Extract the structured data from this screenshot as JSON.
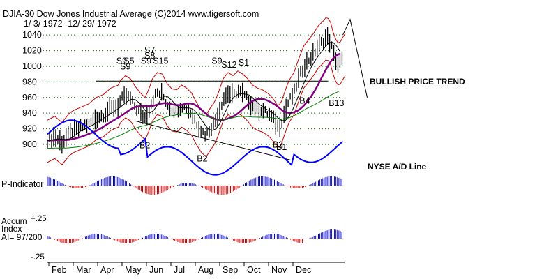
{
  "header": {
    "title": "DJIA-30  Dow Jones Industrial Average   (C)2014 www.tigersoft.com",
    "date_range": "1/ 3/ 1972- 12/ 29/ 1972"
  },
  "panels": {
    "p_indicator_label": "P-Indicator",
    "accum_label": "Accum",
    "index_label": "Index",
    "ai_label": "AI= 97/200",
    "accum_plus_tick": "+.25",
    "accum_minus_tick": "-.25"
  },
  "annotations": {
    "bullish_trend": "BULLISH PRICE TREND",
    "nyse_ad": "NYSE A/D Line"
  },
  "signals": [
    {
      "label": "S9",
      "month_pos": 4.05,
      "level": 1003
    },
    {
      "label": "S5",
      "month_pos": 4.35,
      "level": 1003
    },
    {
      "label": "S9",
      "month_pos": 4.2,
      "level": 996
    },
    {
      "label": "S7",
      "month_pos": 5.2,
      "level": 1017
    },
    {
      "label": "S8",
      "month_pos": 5.2,
      "level": 1010
    },
    {
      "label": "S9",
      "month_pos": 5.05,
      "level": 1003
    },
    {
      "label": "S15",
      "month_pos": 5.55,
      "level": 1003
    },
    {
      "label": "S9",
      "month_pos": 7.95,
      "level": 1003
    },
    {
      "label": "S12",
      "month_pos": 8.35,
      "level": 998
    },
    {
      "label": "S1",
      "month_pos": 9.05,
      "level": 1001
    },
    {
      "label": "B2",
      "month_pos": 5.0,
      "level": 895
    },
    {
      "label": "B2",
      "month_pos": 7.35,
      "level": 878
    },
    {
      "label": "B2",
      "month_pos": 10.45,
      "level": 896
    },
    {
      "label": "B1",
      "month_pos": 10.6,
      "level": 893
    },
    {
      "label": "B4",
      "month_pos": 11.55,
      "level": 952
    },
    {
      "label": "B13",
      "month_pos": 12.75,
      "level": 949
    }
  ],
  "colors": {
    "price_bars": "#000000",
    "band": "#cc0000",
    "ma_long": "#800080",
    "ma_green": "#008000",
    "ad_line": "#0000ff",
    "positive": "#0000cc",
    "negative": "#cc0000",
    "grid": "#008000"
  },
  "chart_data": {
    "type": "line",
    "title": "DJIA-30  Dow Jones Industrial Average",
    "x_ticks": [
      "Feb",
      "Mar",
      "Apr",
      "May",
      "Jun",
      "Jul",
      "Aug",
      "Sep",
      "Oct",
      "Nov",
      "Dec"
    ],
    "y_ticks": [
      900,
      920,
      940,
      960,
      980,
      1000,
      1020,
      1040
    ],
    "ylim": [
      875,
      1058
    ],
    "grid": true,
    "series": [
      {
        "name": "DJIA",
        "points": [
          [
            1.0,
            905
          ],
          [
            1.3,
            910
          ],
          [
            1.6,
            902
          ],
          [
            1.9,
            914
          ],
          [
            2.1,
            918
          ],
          [
            2.4,
            922
          ],
          [
            2.7,
            926
          ],
          [
            3.0,
            934
          ],
          [
            3.3,
            938
          ],
          [
            3.6,
            946
          ],
          [
            3.9,
            950
          ],
          [
            4.0,
            956
          ],
          [
            4.2,
            962
          ],
          [
            4.4,
            958
          ],
          [
            4.6,
            948
          ],
          [
            4.8,
            940
          ],
          [
            5.0,
            934
          ],
          [
            5.15,
            944
          ],
          [
            5.3,
            958
          ],
          [
            5.5,
            966
          ],
          [
            5.7,
            964
          ],
          [
            5.9,
            952
          ],
          [
            6.1,
            945
          ],
          [
            6.3,
            944
          ],
          [
            6.5,
            950
          ],
          [
            6.7,
            946
          ],
          [
            6.9,
            940
          ],
          [
            7.1,
            928
          ],
          [
            7.3,
            918
          ],
          [
            7.5,
            912
          ],
          [
            7.7,
            922
          ],
          [
            7.85,
            928
          ],
          [
            8.0,
            940
          ],
          [
            8.2,
            958
          ],
          [
            8.4,
            966
          ],
          [
            8.6,
            962
          ],
          [
            8.8,
            968
          ],
          [
            9.0,
            964
          ],
          [
            9.2,
            958
          ],
          [
            9.4,
            950
          ],
          [
            9.6,
            946
          ],
          [
            9.8,
            944
          ],
          [
            10.0,
            940
          ],
          [
            10.15,
            936
          ],
          [
            10.3,
            930
          ],
          [
            10.45,
            922
          ],
          [
            10.6,
            930
          ],
          [
            10.75,
            944
          ],
          [
            10.9,
            956
          ],
          [
            11.1,
            966
          ],
          [
            11.3,
            984
          ],
          [
            11.5,
            1000
          ],
          [
            11.7,
            1008
          ],
          [
            11.9,
            1016
          ],
          [
            12.1,
            1026
          ],
          [
            12.3,
            1032
          ],
          [
            12.45,
            1038
          ],
          [
            12.6,
            1030
          ],
          [
            12.75,
            1012
          ],
          [
            12.9,
            1004
          ],
          [
            13.05,
            1006
          ],
          [
            13.15,
            1016
          ]
        ]
      }
    ]
  }
}
